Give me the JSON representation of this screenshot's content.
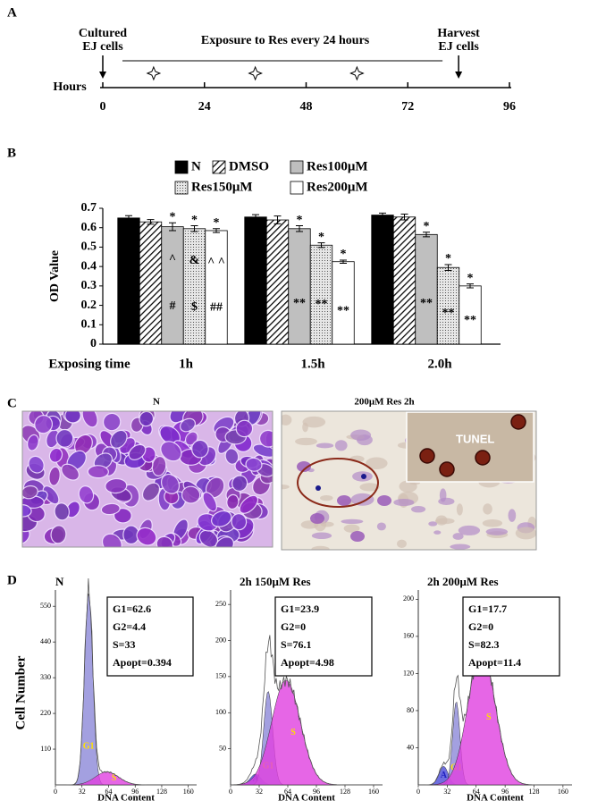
{
  "panel_a": {
    "label": "A",
    "start_label": [
      "Cultured",
      "EJ cells"
    ],
    "exposure_label": "Exposure to Res  every 24 hours",
    "end_label": [
      "Harvest",
      "EJ cells"
    ],
    "axis_label": "Hours",
    "xlim": [
      0,
      96
    ],
    "xticks": [
      0,
      24,
      48,
      72,
      96
    ],
    "start_time": 0,
    "dose_times": [
      12,
      36,
      60
    ],
    "harvest_time": 84
  },
  "chart_data": {
    "type": "bar",
    "panel_label": "B",
    "ylabel": "OD Value",
    "xlabel": "Exposing time",
    "categories": [
      "1h",
      "1.5h",
      "2.0h"
    ],
    "ylim": [
      0,
      0.7
    ],
    "yticks": [
      0,
      0.1,
      0.2,
      0.3,
      0.4,
      0.5,
      0.6,
      0.7
    ],
    "series": [
      {
        "name": "N",
        "color": "#000000",
        "pattern": "solid",
        "values": [
          0.65,
          0.655,
          0.665
        ],
        "errors": [
          0.012,
          0.012,
          0.01
        ]
      },
      {
        "name": "DMSO",
        "color": "#000000",
        "pattern": "hatch",
        "values": [
          0.63,
          0.64,
          0.655
        ],
        "errors": [
          0.012,
          0.02,
          0.015
        ]
      },
      {
        "name": "Res100μM",
        "color": "#bfbfbf",
        "pattern": "solid",
        "values": [
          0.605,
          0.595,
          0.565
        ],
        "errors": [
          0.02,
          0.015,
          0.012
        ],
        "above": [
          "*",
          "*",
          "*"
        ],
        "inside": [
          [
            "^",
            "#"
          ],
          [
            "**"
          ],
          [
            "**"
          ]
        ]
      },
      {
        "name": "Res150μM",
        "color": "#bfbfbf",
        "pattern": "dots",
        "values": [
          0.595,
          0.51,
          0.395
        ],
        "errors": [
          0.015,
          0.012,
          0.015
        ],
        "above": [
          "*",
          "*",
          "*"
        ],
        "inside": [
          [
            "&",
            "$"
          ],
          [
            "**"
          ],
          [
            "**"
          ]
        ]
      },
      {
        "name": "Res200μM",
        "color": "#ffffff",
        "pattern": "solid",
        "values": [
          0.585,
          0.425,
          0.3
        ],
        "errors": [
          0.01,
          0.008,
          0.01
        ],
        "above": [
          "*",
          "*",
          "*"
        ],
        "inside": [
          [
            "^ ^",
            "##"
          ],
          [
            "**"
          ],
          [
            "**"
          ]
        ]
      }
    ]
  },
  "panel_c": {
    "label": "C",
    "left_title": "N",
    "right_title": "200μM Res 2h",
    "inset_label": "TUNEL"
  },
  "panel_d": {
    "label": "D",
    "ylabel": "Cell Number",
    "plots": [
      {
        "title": "N",
        "xlabel": "DNA Content",
        "xlim": [
          0,
          170
        ],
        "xticks": [
          0,
          32,
          64,
          96,
          128,
          160
        ],
        "ylim": [
          0,
          600
        ],
        "yticks": [
          110,
          220,
          330,
          440,
          550
        ],
        "stats": [
          "G1=62.6",
          "G2=4.4",
          "S=33",
          "Apopt=0.394"
        ],
        "components": [
          {
            "name": "G1",
            "color": "#8c88d8",
            "center": 40,
            "width": 5,
            "height": 590
          },
          {
            "name": "S",
            "color": "#e040e0",
            "center": 62,
            "width": 14,
            "height": 40
          }
        ]
      },
      {
        "title": "2h 150μM Res",
        "xlabel": "DNA Content",
        "xlim": [
          0,
          170
        ],
        "xticks": [
          0,
          32,
          64,
          96,
          128,
          160
        ],
        "ylim": [
          0,
          270
        ],
        "yticks": [
          50,
          100,
          150,
          200,
          250
        ],
        "stats": [
          "G1=23.9",
          "G2=0",
          "S=76.1",
          "Apopt=4.98"
        ],
        "components": [
          {
            "name": "A",
            "color": "#4a4ad8",
            "center": 28,
            "width": 6,
            "height": 15
          },
          {
            "name": "G1",
            "color": "#8c88d8",
            "center": 42,
            "width": 5,
            "height": 130
          },
          {
            "name": "S",
            "color": "#e040e0",
            "center": 62,
            "width": 16,
            "height": 145
          }
        ]
      },
      {
        "title": "2h 200μM Res",
        "xlabel": "DNA Content",
        "xlim": [
          0,
          170
        ],
        "xticks": [
          0,
          32,
          64,
          96,
          128,
          160
        ],
        "ylim": [
          0,
          210
        ],
        "yticks": [
          40,
          80,
          120,
          160,
          200
        ],
        "stats": [
          "G1=17.7",
          "G2=0",
          "S=82.3",
          "Apopt=11.4"
        ],
        "components": [
          {
            "name": "A",
            "color": "#4a4ad8",
            "center": 28,
            "width": 5,
            "height": 20
          },
          {
            "name": "G1",
            "color": "#8c88d8",
            "center": 42,
            "width": 4,
            "height": 90
          },
          {
            "name": "S",
            "color": "#e040e0",
            "center": 70,
            "width": 15,
            "height": 145
          }
        ]
      }
    ]
  }
}
